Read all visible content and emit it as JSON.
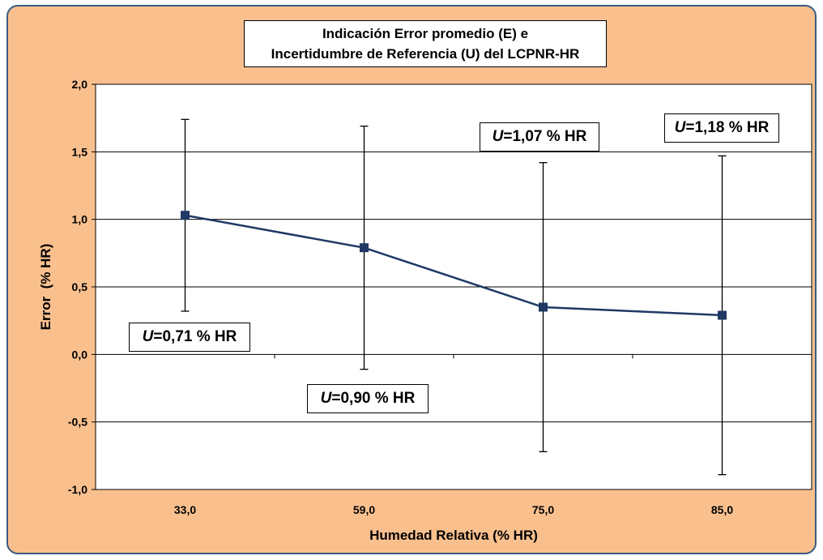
{
  "chart_data": {
    "type": "line",
    "title": [
      "Indicación Error promedio (E) e",
      "Incertidumbre de Referencia (U) del LCPNR-HR"
    ],
    "xlabel": "Humedad Relativa (% HR)",
    "ylabel": "Error  (% HR)",
    "categories": [
      "33,0",
      "59,0",
      "75,0",
      "85,0"
    ],
    "series": [
      {
        "values": [
          1.03,
          0.79,
          0.35,
          0.29
        ],
        "error_upper": [
          1.74,
          1.69,
          1.42,
          1.47
        ],
        "error_lower": [
          0.32,
          -0.11,
          -0.72,
          -0.89
        ],
        "color": "#1f3864"
      }
    ],
    "ylim": [
      -1.0,
      2.0
    ],
    "yticks": [
      -1.0,
      -0.5,
      0.0,
      0.5,
      1.0,
      1.5,
      2.0
    ],
    "ytick_labels": [
      "-1,0",
      "-0,5",
      "0,0",
      "0,5",
      "1,0",
      "1,5",
      "2,0"
    ],
    "grid": true,
    "annotations": [
      {
        "category": "33,0",
        "symbol": "U",
        "text": "=0,71 % HR"
      },
      {
        "category": "59,0",
        "symbol": "U",
        "text": "=0,90 % HR"
      },
      {
        "category": "75,0",
        "symbol": "U",
        "text": "=1,07 % HR"
      },
      {
        "category": "85,0",
        "symbol": "U",
        "text": "=1,18 % HR"
      }
    ],
    "colors": {
      "background": "#f9c08e",
      "plot_area": "#ffffff",
      "line": "#1f3864",
      "frame_border": "#3b5a80"
    }
  }
}
